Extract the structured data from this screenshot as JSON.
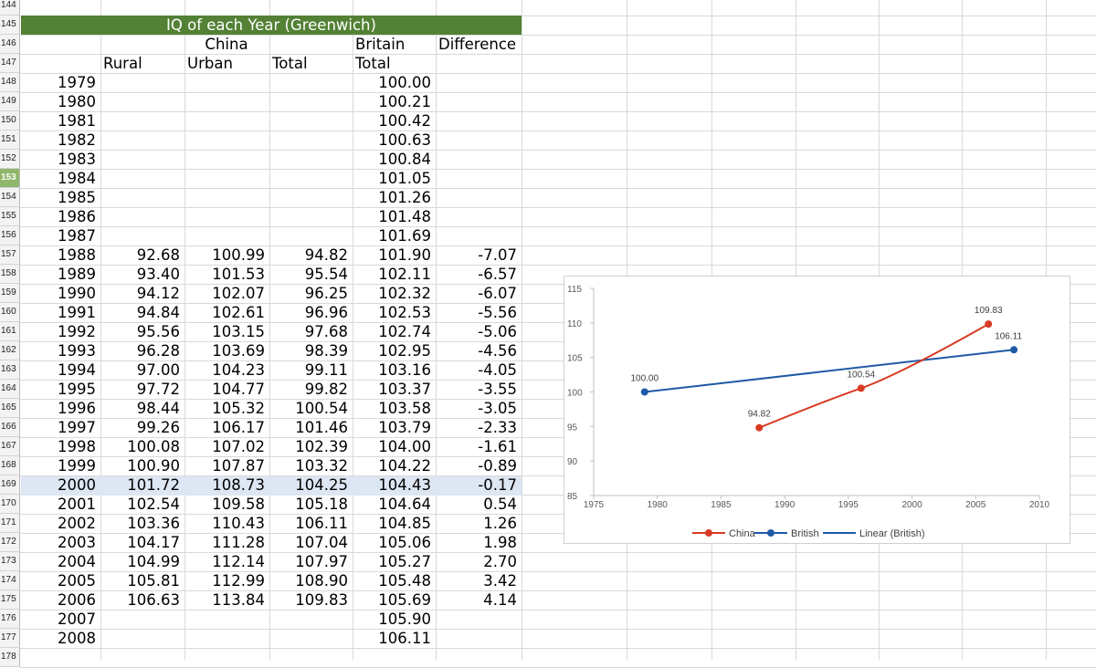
{
  "sheet": {
    "row_numbers": [
      "144",
      "145",
      "146",
      "147",
      "148",
      "149",
      "150",
      "151",
      "152",
      "153",
      "154",
      "155",
      "156",
      "157",
      "158",
      "159",
      "160",
      "161",
      "162",
      "163",
      "164",
      "165",
      "166",
      "167",
      "168",
      "169",
      "170",
      "171",
      "172",
      "173",
      "174",
      "175",
      "176",
      "177",
      "178"
    ],
    "selected_row": "153",
    "title": "IQ of each Year (Greenwich)",
    "headers": {
      "china": "China",
      "britain": "Britain",
      "difference": "Difference",
      "rural": "Rural",
      "urban": "Urban",
      "total": "Total",
      "britain_total": "Total"
    },
    "rows": [
      {
        "year": "1979",
        "rural": "",
        "urban": "",
        "total": "",
        "britain": "100.00",
        "diff": ""
      },
      {
        "year": "1980",
        "rural": "",
        "urban": "",
        "total": "",
        "britain": "100.21",
        "diff": ""
      },
      {
        "year": "1981",
        "rural": "",
        "urban": "",
        "total": "",
        "britain": "100.42",
        "diff": ""
      },
      {
        "year": "1982",
        "rural": "",
        "urban": "",
        "total": "",
        "britain": "100.63",
        "diff": ""
      },
      {
        "year": "1983",
        "rural": "",
        "urban": "",
        "total": "",
        "britain": "100.84",
        "diff": ""
      },
      {
        "year": "1984",
        "rural": "",
        "urban": "",
        "total": "",
        "britain": "101.05",
        "diff": ""
      },
      {
        "year": "1985",
        "rural": "",
        "urban": "",
        "total": "",
        "britain": "101.26",
        "diff": ""
      },
      {
        "year": "1986",
        "rural": "",
        "urban": "",
        "total": "",
        "britain": "101.48",
        "diff": ""
      },
      {
        "year": "1987",
        "rural": "",
        "urban": "",
        "total": "",
        "britain": "101.69",
        "diff": ""
      },
      {
        "year": "1988",
        "rural": "92.68",
        "urban": "100.99",
        "total": "94.82",
        "britain": "101.90",
        "diff": "-7.07"
      },
      {
        "year": "1989",
        "rural": "93.40",
        "urban": "101.53",
        "total": "95.54",
        "britain": "102.11",
        "diff": "-6.57"
      },
      {
        "year": "1990",
        "rural": "94.12",
        "urban": "102.07",
        "total": "96.25",
        "britain": "102.32",
        "diff": "-6.07"
      },
      {
        "year": "1991",
        "rural": "94.84",
        "urban": "102.61",
        "total": "96.96",
        "britain": "102.53",
        "diff": "-5.56"
      },
      {
        "year": "1992",
        "rural": "95.56",
        "urban": "103.15",
        "total": "97.68",
        "britain": "102.74",
        "diff": "-5.06"
      },
      {
        "year": "1993",
        "rural": "96.28",
        "urban": "103.69",
        "total": "98.39",
        "britain": "102.95",
        "diff": "-4.56"
      },
      {
        "year": "1994",
        "rural": "97.00",
        "urban": "104.23",
        "total": "99.11",
        "britain": "103.16",
        "diff": "-4.05"
      },
      {
        "year": "1995",
        "rural": "97.72",
        "urban": "104.77",
        "total": "99.82",
        "britain": "103.37",
        "diff": "-3.55"
      },
      {
        "year": "1996",
        "rural": "98.44",
        "urban": "105.32",
        "total": "100.54",
        "britain": "103.58",
        "diff": "-3.05"
      },
      {
        "year": "1997",
        "rural": "99.26",
        "urban": "106.17",
        "total": "101.46",
        "britain": "103.79",
        "diff": "-2.33"
      },
      {
        "year": "1998",
        "rural": "100.08",
        "urban": "107.02",
        "total": "102.39",
        "britain": "104.00",
        "diff": "-1.61"
      },
      {
        "year": "1999",
        "rural": "100.90",
        "urban": "107.87",
        "total": "103.32",
        "britain": "104.22",
        "diff": "-0.89"
      },
      {
        "year": "2000",
        "rural": "101.72",
        "urban": "108.73",
        "total": "104.25",
        "britain": "104.43",
        "diff": "-0.17"
      },
      {
        "year": "2001",
        "rural": "102.54",
        "urban": "109.58",
        "total": "105.18",
        "britain": "104.64",
        "diff": "0.54"
      },
      {
        "year": "2002",
        "rural": "103.36",
        "urban": "110.43",
        "total": "106.11",
        "britain": "104.85",
        "diff": "1.26"
      },
      {
        "year": "2003",
        "rural": "104.17",
        "urban": "111.28",
        "total": "107.04",
        "britain": "105.06",
        "diff": "1.98"
      },
      {
        "year": "2004",
        "rural": "104.99",
        "urban": "112.14",
        "total": "107.97",
        "britain": "105.27",
        "diff": "2.70"
      },
      {
        "year": "2005",
        "rural": "105.81",
        "urban": "112.99",
        "total": "108.90",
        "britain": "105.48",
        "diff": "3.42"
      },
      {
        "year": "2006",
        "rural": "106.63",
        "urban": "113.84",
        "total": "109.83",
        "britain": "105.69",
        "diff": "4.14"
      },
      {
        "year": "2007",
        "rural": "",
        "urban": "",
        "total": "",
        "britain": "105.90",
        "diff": ""
      },
      {
        "year": "2008",
        "rural": "",
        "urban": "",
        "total": "",
        "britain": "106.11",
        "diff": ""
      }
    ],
    "colors": {
      "title_band": "#538135",
      "selected_row": "#dde6f3",
      "row_header_selected": "#8fb66a",
      "gridline": "#d9d9d9"
    }
  },
  "chart_data": {
    "type": "scatter",
    "title": "",
    "xlabel": "",
    "ylabel": "",
    "xlim": [
      1975,
      2010
    ],
    "ylim": [
      85,
      115
    ],
    "x_ticks": [
      "1975",
      "1980",
      "1985",
      "1990",
      "1995",
      "2000",
      "2005",
      "2010"
    ],
    "y_ticks": [
      "85",
      "90",
      "95",
      "100",
      "105",
      "110",
      "115"
    ],
    "grid": false,
    "legend_position": "bottom",
    "series": [
      {
        "name": "China",
        "color": "#d83b24",
        "points": [
          {
            "x": 1988,
            "y": 94.82,
            "label": "94.82"
          },
          {
            "x": 1996,
            "y": 100.54,
            "label": "100.54"
          },
          {
            "x": 2006,
            "y": 109.83,
            "label": "109.83"
          }
        ],
        "curve": "smooth"
      },
      {
        "name": "British",
        "color": "#1f5aa6",
        "points": [
          {
            "x": 1979,
            "y": 100.0,
            "label": "100.00"
          },
          {
            "x": 2008,
            "y": 106.11,
            "label": "106.11"
          }
        ],
        "line": false
      },
      {
        "name": "Linear (British)",
        "color": "#1f5aa6",
        "type": "trendline",
        "points": [
          {
            "x": 1979,
            "y": 100.0
          },
          {
            "x": 2008,
            "y": 106.11
          }
        ]
      }
    ]
  }
}
